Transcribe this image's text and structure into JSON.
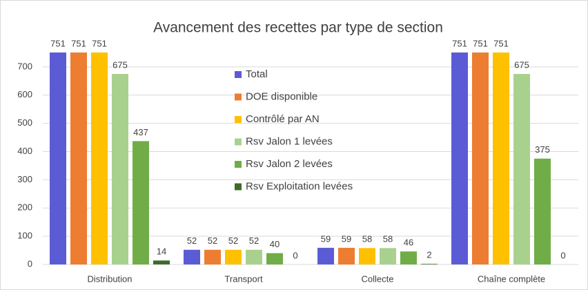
{
  "chart_data": {
    "type": "bar",
    "title": "Avancement des recettes par type de section",
    "categories": [
      "Distribution",
      "Transport",
      "Collecte",
      "Chaîne complète"
    ],
    "series": [
      {
        "name": "Total",
        "color": "#5b5bd6",
        "values": [
          751,
          52,
          59,
          751
        ]
      },
      {
        "name": "DOE disponible",
        "color": "#ed7d31",
        "values": [
          751,
          52,
          59,
          751
        ]
      },
      {
        "name": "Contrôlé par AN",
        "color": "#ffc000",
        "values": [
          751,
          52,
          58,
          751
        ]
      },
      {
        "name": "Rsv Jalon 1 levées",
        "color": "#a9d18e",
        "values": [
          675,
          52,
          58,
          675
        ]
      },
      {
        "name": "Rsv Jalon 2 levées",
        "color": "#70ad47",
        "values": [
          437,
          40,
          46,
          375
        ]
      },
      {
        "name": "Rsv Exploitation levées",
        "color": "#3f6b2a",
        "values": [
          14,
          0,
          2,
          0
        ]
      }
    ],
    "ylim": [
      0,
      800
    ],
    "yticks": [
      0,
      100,
      200,
      300,
      400,
      500,
      600,
      700
    ],
    "grid": true
  }
}
